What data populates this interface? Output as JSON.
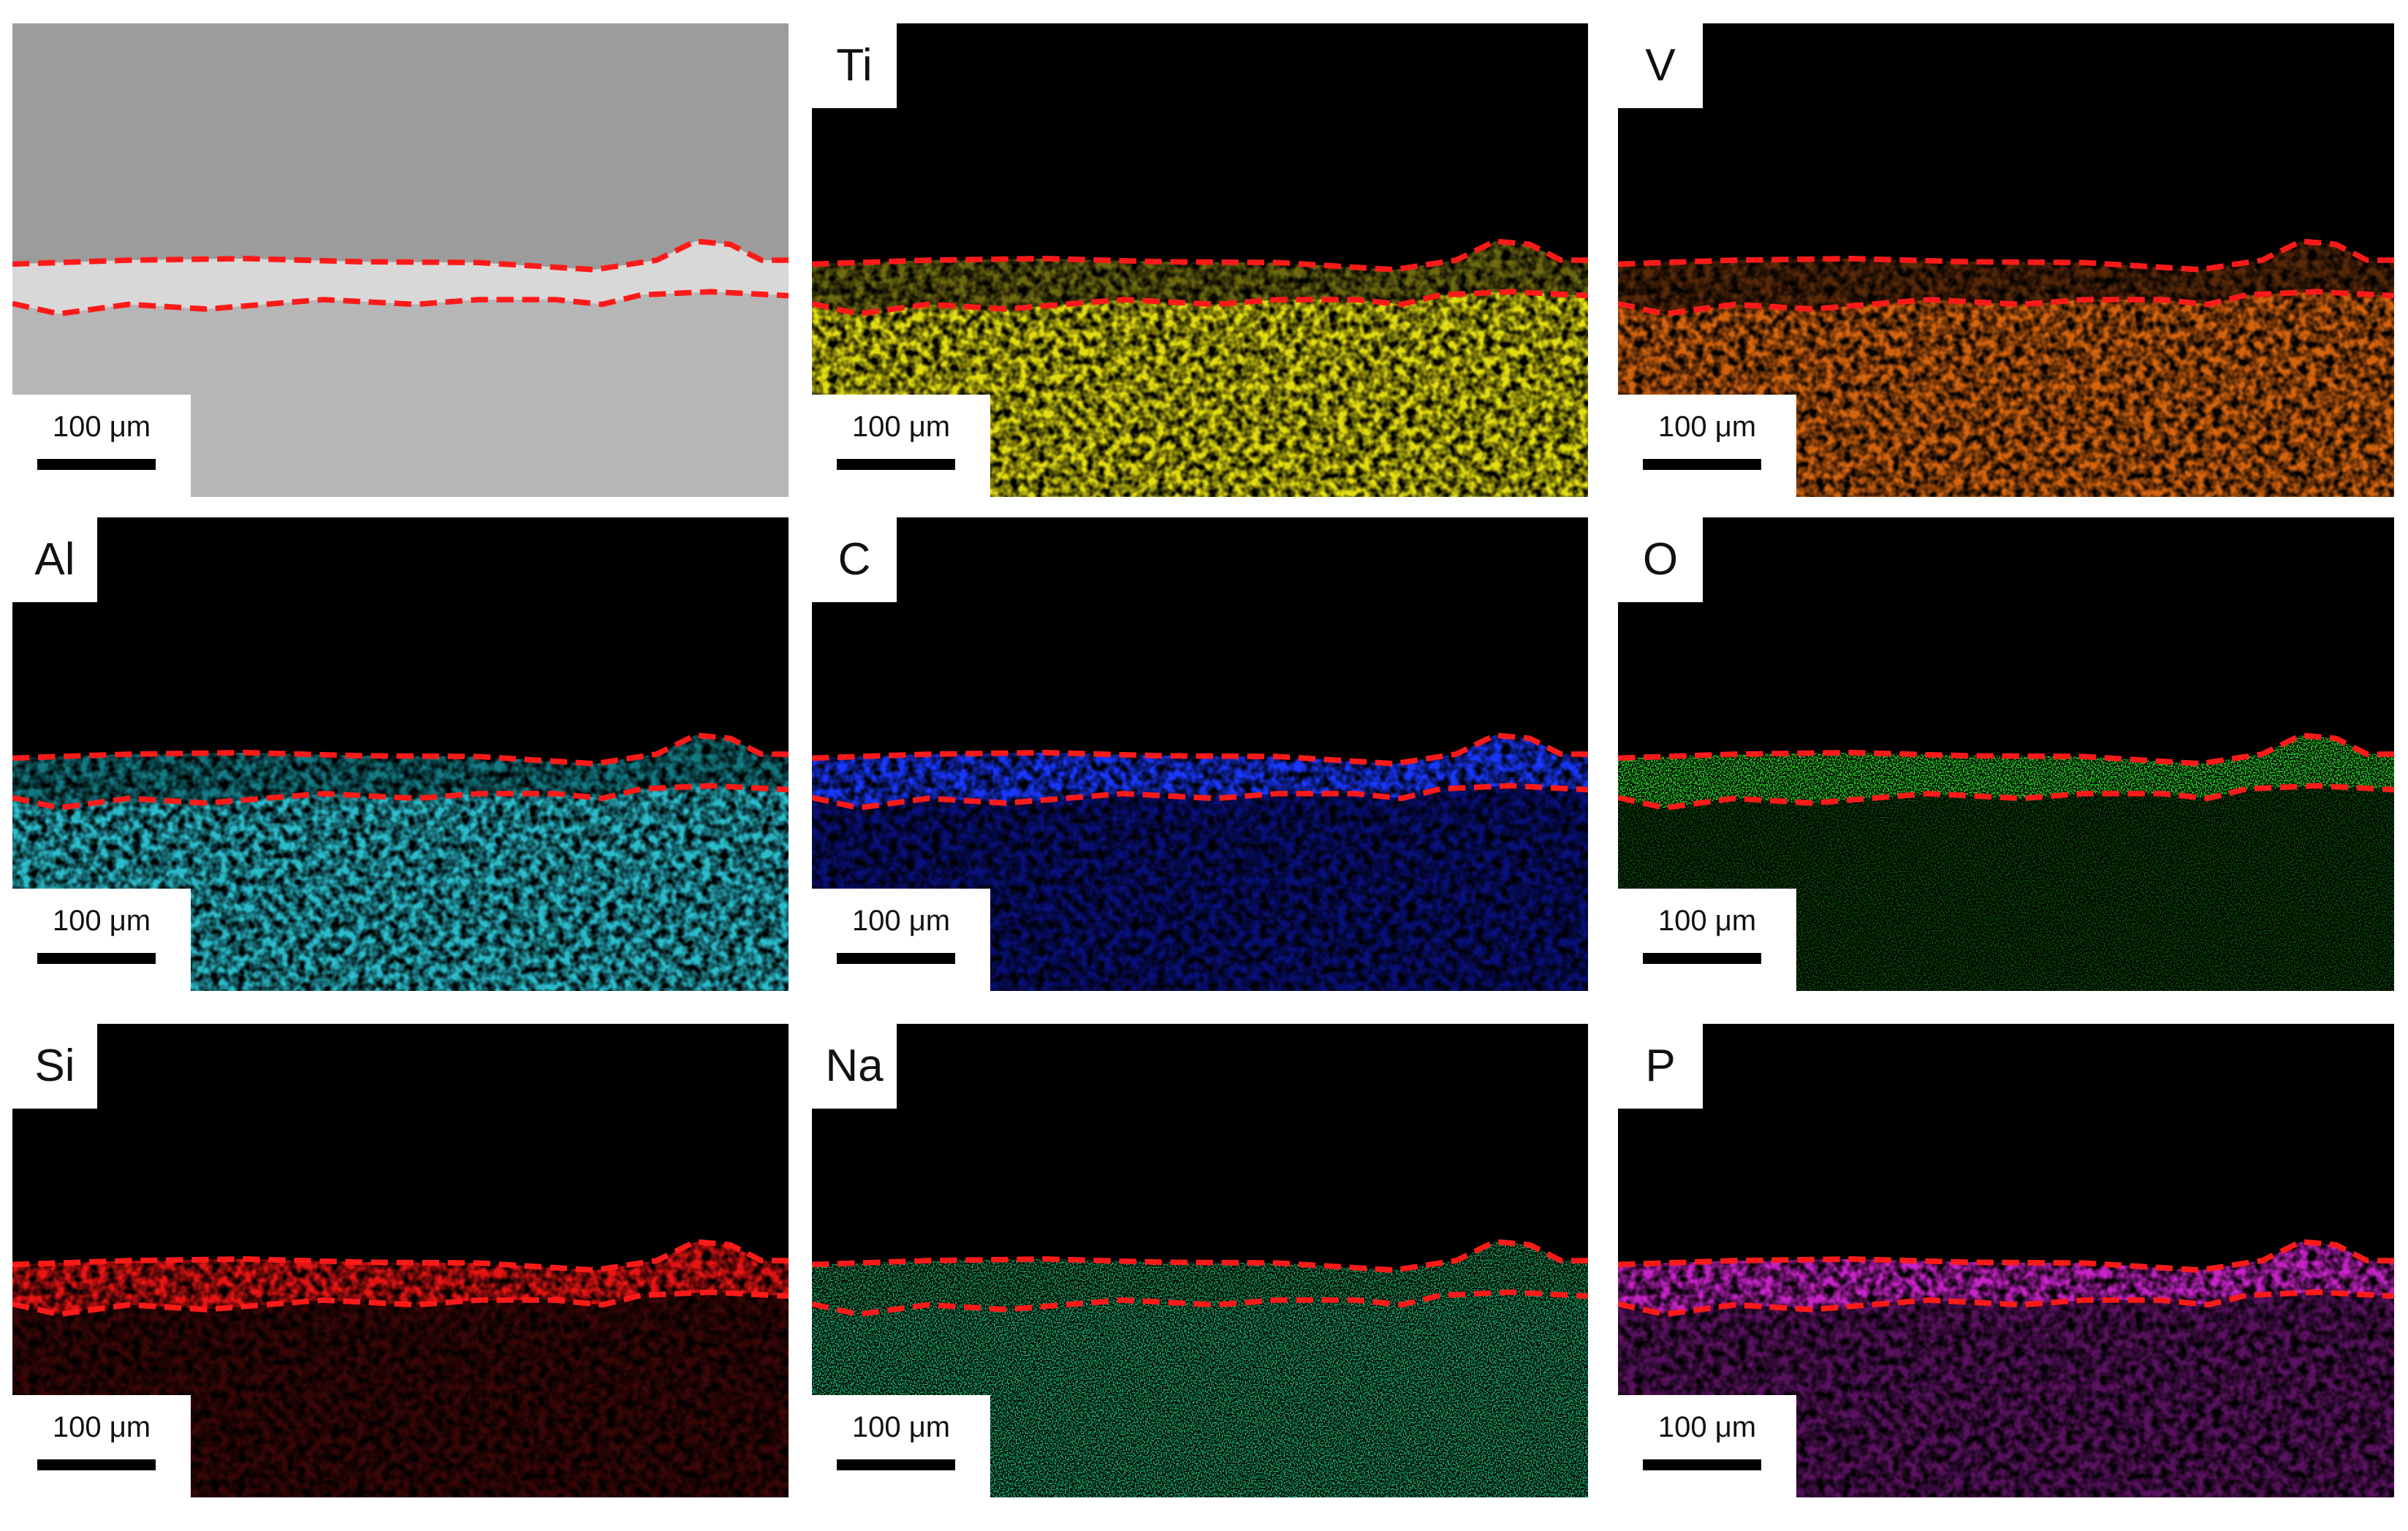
{
  "panels": [
    {
      "scale_bar": "100 μm"
    },
    {
      "label": "Ti",
      "scale_bar": "100 μm"
    },
    {
      "label": "V",
      "scale_bar": "100 μm"
    },
    {
      "label": "Al",
      "scale_bar": "100 μm"
    },
    {
      "label": "C",
      "scale_bar": "100 μm"
    },
    {
      "label": "O",
      "scale_bar": "100 μm"
    },
    {
      "label": "Si",
      "scale_bar": "100 μm"
    },
    {
      "label": "Na",
      "scale_bar": "100 μm"
    },
    {
      "label": "P",
      "scale_bar": "100 μm"
    }
  ]
}
